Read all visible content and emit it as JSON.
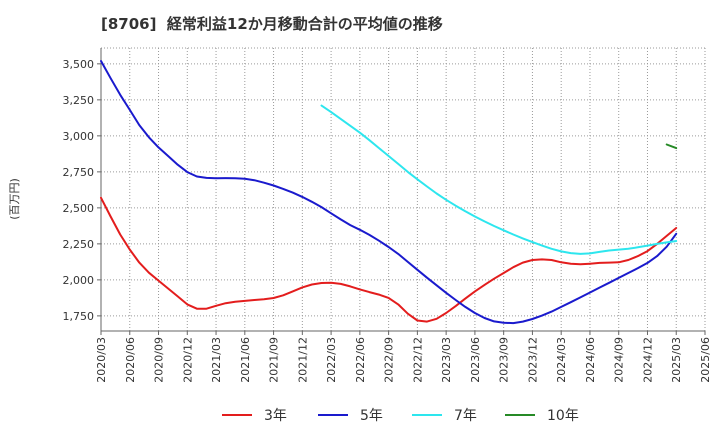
{
  "chart_data": {
    "type": "line",
    "title": "[8706]  経常利益12か月移動合計の平均値の推移",
    "ylabel": "(百万円)",
    "ylim": [
      1645,
      3610
    ],
    "yticks": [
      1750,
      2000,
      2250,
      2500,
      2750,
      3000,
      3250,
      3500
    ],
    "ytick_labels": [
      "1,750",
      "2,000",
      "2,250",
      "2,500",
      "2,750",
      "3,000",
      "3,250",
      "3,500"
    ],
    "xticks": [
      "2020/03",
      "2020/06",
      "2020/09",
      "2020/12",
      "2021/03",
      "2021/06",
      "2021/09",
      "2021/12",
      "2022/03",
      "2022/06",
      "2022/09",
      "2022/12",
      "2023/03",
      "2023/06",
      "2023/09",
      "2023/12",
      "2024/03",
      "2024/06",
      "2024/09",
      "2024/12",
      "2025/03",
      "2025/06"
    ],
    "xtick_step_months": 3,
    "grid": true,
    "series": [
      {
        "name": "3年",
        "color": "#e31d1d",
        "start_month_index": 0,
        "values": [
          2570,
          2440,
          2315,
          2210,
          2120,
          2050,
          1995,
          1940,
          1885,
          1830,
          1800,
          1800,
          1820,
          1838,
          1848,
          1854,
          1860,
          1866,
          1874,
          1893,
          1920,
          1948,
          1968,
          1978,
          1980,
          1972,
          1955,
          1934,
          1915,
          1898,
          1875,
          1830,
          1765,
          1718,
          1710,
          1730,
          1770,
          1818,
          1870,
          1920,
          1965,
          2008,
          2048,
          2088,
          2120,
          2138,
          2142,
          2138,
          2122,
          2112,
          2108,
          2112,
          2118,
          2120,
          2122,
          2138,
          2165,
          2200,
          2250,
          2305,
          2360
        ]
      },
      {
        "name": "5年",
        "color": "#1a1acd",
        "start_month_index": 0,
        "values": [
          3520,
          3400,
          3285,
          3180,
          3075,
          2990,
          2920,
          2860,
          2800,
          2748,
          2718,
          2708,
          2706,
          2707,
          2706,
          2702,
          2692,
          2675,
          2655,
          2632,
          2606,
          2576,
          2542,
          2505,
          2462,
          2420,
          2380,
          2348,
          2312,
          2272,
          2228,
          2180,
          2125,
          2070,
          2015,
          1962,
          1910,
          1860,
          1812,
          1770,
          1735,
          1712,
          1702,
          1700,
          1710,
          1728,
          1752,
          1780,
          1812,
          1845,
          1878,
          1912,
          1946,
          1980,
          2014,
          2048,
          2082,
          2118,
          2165,
          2230,
          2320
        ]
      },
      {
        "name": "7年",
        "color": "#2de6ee",
        "start_month_index": 23,
        "values": [
          3210,
          3165,
          3118,
          3070,
          3022,
          2970,
          2915,
          2860,
          2805,
          2750,
          2698,
          2648,
          2600,
          2556,
          2515,
          2476,
          2440,
          2406,
          2374,
          2344,
          2315,
          2288,
          2262,
          2238,
          2216,
          2198,
          2186,
          2180,
          2184,
          2194,
          2204,
          2210,
          2216,
          2226,
          2238,
          2250,
          2260,
          2270
        ]
      },
      {
        "name": "10年",
        "color": "#268a26",
        "start_month_index": 59,
        "values": [
          2940,
          2915
        ]
      }
    ]
  }
}
